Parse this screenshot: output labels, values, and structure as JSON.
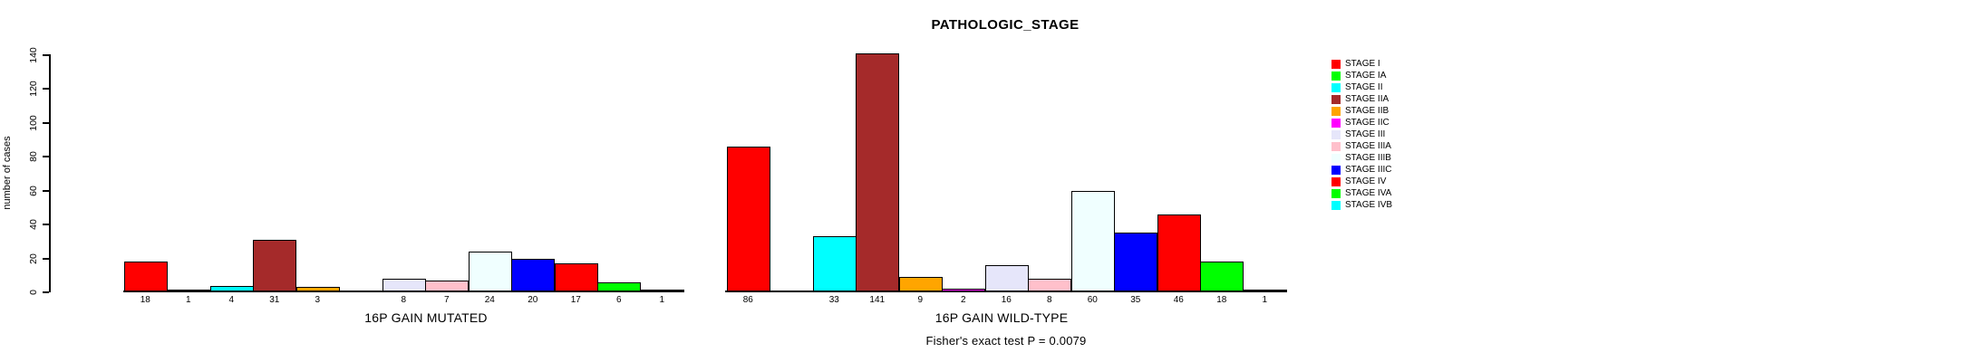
{
  "chart_data": {
    "type": "bar",
    "title": "PATHOLOGIC_STAGE",
    "ylabel": "number of cases",
    "ylim": [
      0,
      140
    ],
    "yticks": [
      0,
      20,
      40,
      60,
      80,
      100,
      120,
      140
    ],
    "grid": false,
    "legend_position": "right-of-plot",
    "annotation": "Fisher's exact test P = 0.0079",
    "categories": [
      "STAGE I",
      "STAGE IA",
      "STAGE II",
      "STAGE IIA",
      "STAGE IIB",
      "STAGE IIC",
      "STAGE III",
      "STAGE IIIA",
      "STAGE IIIB",
      "STAGE IIIC",
      "STAGE IV",
      "STAGE IVA",
      "STAGE IVB"
    ],
    "colors": [
      "#ff0000",
      "#00ff00",
      "#00ffff",
      "#a52a2a",
      "#ffa500",
      "#ff00ff",
      "#e6e6fa",
      "#ffc0cb",
      "#f0ffff",
      "#0000ff",
      "#ff0000",
      "#00ff00",
      "#00ffff"
    ],
    "series": [
      {
        "name": "16P GAIN MUTATED",
        "values": [
          18,
          1,
          4,
          31,
          3,
          0,
          8,
          7,
          24,
          20,
          17,
          6,
          1
        ]
      },
      {
        "name": "16P GAIN WILD-TYPE",
        "values": [
          86,
          0,
          33,
          141,
          9,
          2,
          16,
          8,
          60,
          35,
          46,
          18,
          1
        ]
      }
    ],
    "bar_value_labels": true,
    "zero_bars_hidden": true,
    "axis_color": "#000000",
    "background": "#ffffff"
  }
}
